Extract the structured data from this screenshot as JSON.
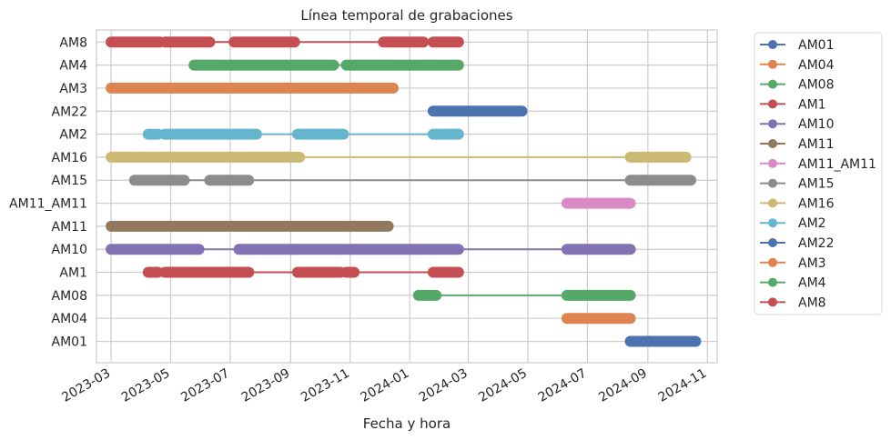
{
  "chart_data": {
    "type": "timeline",
    "title": "Línea temporal de grabaciones",
    "xlabel": "Fecha y hora",
    "ylabel": "",
    "x_domain": [
      "2023-02-14",
      "2024-11-11"
    ],
    "x_ticks": [
      "2023-03",
      "2023-05",
      "2023-07",
      "2023-09",
      "2023-11",
      "2024-01",
      "2024-03",
      "2024-05",
      "2024-07",
      "2024-09",
      "2024-11"
    ],
    "grid": true,
    "legend_placement": "outside-right",
    "categories": [
      "AM01",
      "AM04",
      "AM08",
      "AM1",
      "AM10",
      "AM11",
      "AM11_AM11",
      "AM15",
      "AM16",
      "AM2",
      "AM22",
      "AM3",
      "AM4",
      "AM8"
    ],
    "series": [
      {
        "name": "AM01",
        "color": "#4c72b0",
        "segments": [
          [
            "2024-08-14",
            "2024-10-20"
          ]
        ]
      },
      {
        "name": "AM04",
        "color": "#dd8452",
        "segments": [
          [
            "2024-06-10",
            "2024-08-14"
          ]
        ]
      },
      {
        "name": "AM08",
        "color": "#55a868",
        "segments": [
          [
            "2024-01-10",
            "2024-01-28"
          ],
          [
            "2024-06-10",
            "2024-08-14"
          ]
        ]
      },
      {
        "name": "AM1",
        "color": "#c44e52",
        "segments": [
          [
            "2023-04-08",
            "2023-04-18"
          ],
          [
            "2023-04-25",
            "2023-07-20"
          ],
          [
            "2023-09-08",
            "2023-10-22"
          ],
          [
            "2023-10-28",
            "2023-11-05"
          ],
          [
            "2024-01-25",
            "2024-02-20"
          ]
        ]
      },
      {
        "name": "AM10",
        "color": "#8172b3",
        "segments": [
          [
            "2023-03-01",
            "2023-05-30"
          ],
          [
            "2023-07-10",
            "2023-09-05"
          ],
          [
            "2023-09-05",
            "2023-10-25"
          ],
          [
            "2023-10-28",
            "2024-02-20"
          ],
          [
            "2024-06-10",
            "2024-08-14"
          ]
        ]
      },
      {
        "name": "AM11",
        "color": "#937860",
        "segments": [
          [
            "2023-03-01",
            "2023-10-25"
          ],
          [
            "2023-10-28",
            "2023-12-10"
          ]
        ]
      },
      {
        "name": "AM11_AM11",
        "color": "#da8bc3",
        "segments": [
          [
            "2024-06-10",
            "2024-08-14"
          ]
        ]
      },
      {
        "name": "AM15",
        "color": "#8c8c8c",
        "segments": [
          [
            "2023-03-25",
            "2023-05-15"
          ],
          [
            "2023-06-10",
            "2023-07-20"
          ],
          [
            "2024-08-14",
            "2024-10-15"
          ]
        ]
      },
      {
        "name": "AM16",
        "color": "#ccb974",
        "segments": [
          [
            "2023-03-01",
            "2023-09-10"
          ],
          [
            "2024-08-14",
            "2024-10-10"
          ]
        ]
      },
      {
        "name": "AM2",
        "color": "#64b5cd",
        "segments": [
          [
            "2023-04-08",
            "2023-04-18"
          ],
          [
            "2023-04-25",
            "2023-07-28"
          ],
          [
            "2023-09-08",
            "2023-10-25"
          ],
          [
            "2024-01-25",
            "2024-02-20"
          ]
        ]
      },
      {
        "name": "AM22",
        "color": "#4c72b0",
        "segments": [
          [
            "2024-01-25",
            "2024-04-25"
          ]
        ]
      },
      {
        "name": "AM3",
        "color": "#dd8452",
        "segments": [
          [
            "2023-03-01",
            "2023-09-05"
          ],
          [
            "2023-09-08",
            "2023-10-25"
          ],
          [
            "2023-10-28",
            "2023-12-15"
          ]
        ]
      },
      {
        "name": "AM4",
        "color": "#55a868",
        "segments": [
          [
            "2023-05-25",
            "2023-10-15"
          ],
          [
            "2023-10-28",
            "2024-02-20"
          ]
        ]
      },
      {
        "name": "AM8",
        "color": "#c44e52",
        "segments": [
          [
            "2023-03-01",
            "2023-04-20"
          ],
          [
            "2023-04-25",
            "2023-06-10"
          ],
          [
            "2023-07-05",
            "2023-09-05"
          ],
          [
            "2023-12-05",
            "2024-01-15"
          ],
          [
            "2024-01-25",
            "2024-02-20"
          ]
        ]
      }
    ],
    "y_order": [
      "AM01",
      "AM04",
      "AM08",
      "AM1",
      "AM10",
      "AM11",
      "AM11_AM11",
      "AM15",
      "AM2",
      "AM16",
      "AM22",
      "AM3",
      "AM4",
      "AM8"
    ],
    "y_order_display_top_to_bottom": [
      "AM8",
      "AM4",
      "AM3",
      "AM22",
      "AM2",
      "AM16",
      "AM15",
      "AM11_AM11",
      "AM11",
      "AM10",
      "AM1",
      "AM08",
      "AM04",
      "AM01"
    ]
  }
}
